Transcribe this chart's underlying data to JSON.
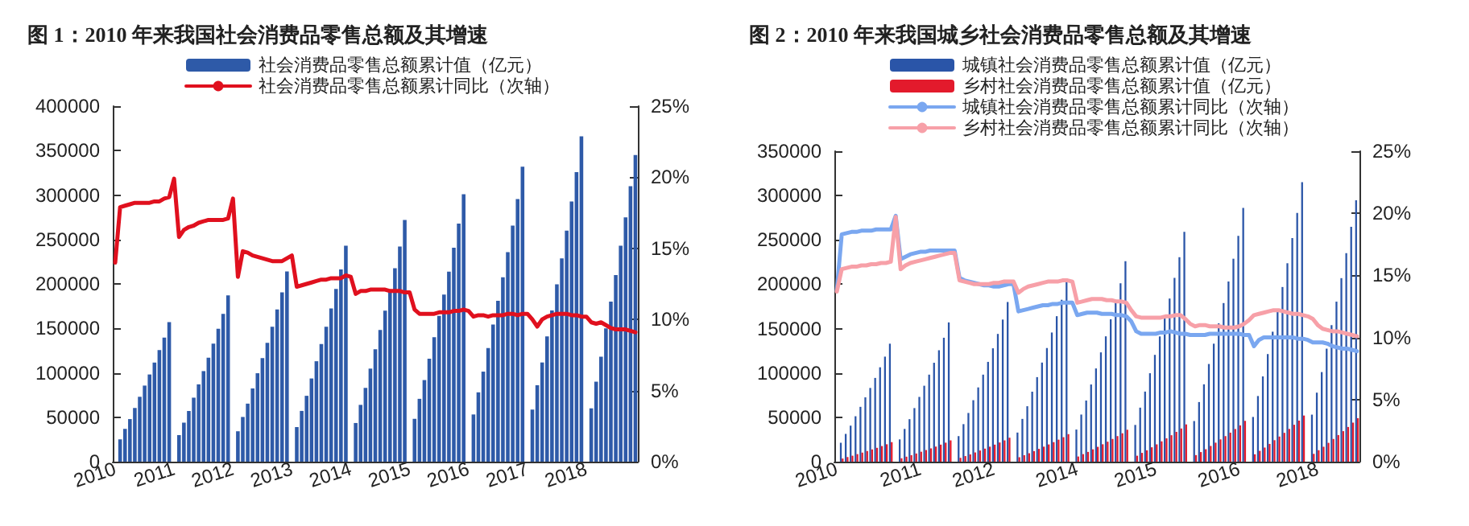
{
  "chart_data": [
    {
      "type": "bar",
      "title": "图 1：2010 年来我国社会消费品零售总额及其增速",
      "categories": [
        "2010",
        null,
        null,
        null,
        null,
        null,
        null,
        null,
        null,
        null,
        null,
        null,
        "2011",
        null,
        null,
        null,
        null,
        null,
        null,
        null,
        null,
        null,
        null,
        null,
        "2012",
        null,
        null,
        null,
        null,
        null,
        null,
        null,
        null,
        null,
        null,
        null,
        "2013",
        null,
        null,
        null,
        null,
        null,
        null,
        null,
        null,
        null,
        null,
        null,
        "2014",
        null,
        null,
        null,
        null,
        null,
        null,
        null,
        null,
        null,
        null,
        null,
        "2015",
        null,
        null,
        null,
        null,
        null,
        null,
        null,
        null,
        null,
        null,
        null,
        "2016",
        null,
        null,
        null,
        null,
        null,
        null,
        null,
        null,
        null,
        null,
        null,
        "2017",
        null,
        null,
        null,
        null,
        null,
        null,
        null,
        null,
        null,
        null,
        null,
        "2018",
        null,
        null,
        null,
        null,
        null,
        null,
        null,
        null,
        null,
        null
      ],
      "series": [
        {
          "name": "社会消费品零售总额累计值（亿元）",
          "color": "#2e5aa8",
          "values": [
            null,
            25100,
            36900,
            47900,
            60400,
            73000,
            85600,
            98100,
            111500,
            125600,
            139700,
            157000,
            null,
            29900,
            43900,
            57000,
            72000,
            87000,
            101900,
            116900,
            132800,
            149600,
            166400,
            187000,
            null,
            34200,
            50300,
            65300,
            82400,
            99500,
            116600,
            133800,
            151900,
            171200,
            190500,
            214000,
            null,
            38900,
            57100,
            74100,
            93600,
            113000,
            132400,
            151900,
            172500,
            194400,
            216300,
            243000,
            null,
            43500,
            63900,
            83000,
            104700,
            126500,
            148200,
            170000,
            193100,
            217600,
            242100,
            272000,
            null,
            48200,
            70700,
            91800,
            115900,
            140000,
            164000,
            188100,
            213700,
            240800,
            267900,
            301000,
            null,
            53100,
            78000,
            101300,
            127800,
            154400,
            180900,
            207500,
            235700,
            265600,
            295500,
            332000,
            null,
            58600,
            86000,
            111600,
            140900,
            170200,
            199500,
            228800,
            259900,
            292800,
            325700,
            366000,
            null,
            60000,
            90000,
            118000,
            150000,
            180000,
            210000,
            243000,
            275000,
            310000,
            345000
          ]
        },
        {
          "type": "line",
          "axis": "y2",
          "name": "社会消费品零售总额累计同比（次轴）",
          "color": "#e0101e",
          "values": [
            14.0,
            17.9,
            18.0,
            18.1,
            18.2,
            18.2,
            18.2,
            18.2,
            18.3,
            18.3,
            18.5,
            18.6,
            19.9,
            15.8,
            16.3,
            16.5,
            16.6,
            16.8,
            16.9,
            17.0,
            17.0,
            17.0,
            17.0,
            17.1,
            18.5,
            13.0,
            14.8,
            14.7,
            14.5,
            14.4,
            14.3,
            14.2,
            14.1,
            14.1,
            14.1,
            14.3,
            14.5,
            12.3,
            12.4,
            12.5,
            12.6,
            12.7,
            12.8,
            12.8,
            12.9,
            12.9,
            12.9,
            13.1,
            13.0,
            11.8,
            12.0,
            12.0,
            12.1,
            12.1,
            12.1,
            12.1,
            12.0,
            12.0,
            12.0,
            11.9,
            11.9,
            10.7,
            10.4,
            10.4,
            10.4,
            10.4,
            10.5,
            10.5,
            10.5,
            10.6,
            10.6,
            10.7,
            10.6,
            10.2,
            10.3,
            10.3,
            10.2,
            10.3,
            10.3,
            10.3,
            10.4,
            10.4,
            10.3,
            10.4,
            10.4,
            10.0,
            9.5,
            10.0,
            10.2,
            10.3,
            10.4,
            10.4,
            10.4,
            10.3,
            10.3,
            10.2,
            10.2,
            9.8,
            9.7,
            9.8,
            9.6,
            9.4,
            9.3,
            9.3,
            9.3,
            9.2,
            9.1
          ]
        }
      ],
      "ylim": [
        0,
        400000
      ],
      "yticks": [
        0,
        50000,
        100000,
        150000,
        200000,
        250000,
        300000,
        350000,
        400000
      ],
      "y2lim": [
        0,
        25
      ],
      "y2ticks": [
        {
          "value": 0,
          "label": "0%"
        },
        {
          "value": 5,
          "label": "5%"
        },
        {
          "value": 10,
          "label": "10%"
        },
        {
          "value": 15,
          "label": "15%"
        },
        {
          "value": 20,
          "label": "20%"
        },
        {
          "value": 25,
          "label": "25%"
        }
      ],
      "legend": "top",
      "marker": "none"
    },
    {
      "type": "bar",
      "title": "图 2：2010 年来我国城乡社会消费品零售总额及其增速",
      "categories": [
        "2010",
        null,
        null,
        null,
        null,
        null,
        null,
        null,
        null,
        null,
        null,
        null,
        null,
        null,
        null,
        null,
        null,
        "2011",
        null,
        null,
        null,
        null,
        null,
        null,
        null,
        null,
        null,
        null,
        null,
        null,
        null,
        null,
        "2012",
        null,
        null,
        null,
        null,
        null,
        null,
        null,
        null,
        null,
        null,
        null,
        null,
        null,
        null,
        null,
        null,
        "2014",
        null,
        null,
        null,
        null,
        null,
        null,
        null,
        null,
        null,
        null,
        null,
        null,
        null,
        null,
        null,
        "2015",
        null,
        null,
        null,
        null,
        null,
        null,
        null,
        null,
        null,
        null,
        null,
        null,
        null,
        null,
        null,
        null,
        "2016",
        null,
        null,
        null,
        null,
        null,
        null,
        null,
        null,
        null,
        null,
        null,
        null,
        null,
        null,
        null,
        "2018",
        null,
        null,
        null,
        null,
        null,
        null,
        null,
        null
      ],
      "series": [
        {
          "name": "城镇社会消费品零售总额累计值（亿元）",
          "color": "#2a55a8",
          "values": [
            null,
            21300,
            31300,
            40600,
            51200,
            61800,
            72500,
            83100,
            94400,
            106400,
            118400,
            133000,
            null,
            25100,
            36900,
            47900,
            60400,
            73000,
            85600,
            98100,
            111500,
            125600,
            139700,
            157000,
            null,
            28800,
            42300,
            54900,
            69300,
            83700,
            98100,
            112500,
            127800,
            144000,
            160200,
            180000,
            null,
            32800,
            48200,
            62500,
            78900,
            95300,
            111700,
            128100,
            145600,
            164000,
            182500,
            205000,
            null,
            36200,
            53100,
            68900,
            87000,
            105100,
            123200,
            141300,
            160500,
            180800,
            201100,
            226000,
            null,
            41400,
            60900,
            79000,
            99700,
            120400,
            141200,
            161900,
            183900,
            207200,
            230500,
            259000,
            null,
            45800,
            67200,
            87200,
            110100,
            133000,
            155900,
            178800,
            203100,
            228800,
            254500,
            286000,
            null,
            50400,
            74000,
            96100,
            121300,
            146500,
            171700,
            196900,
            223700,
            252000,
            280400,
            315000,
            null,
            53000,
            77800,
            101000,
            127400,
            153900,
            180400,
            206900,
            235000,
            264800,
            294600
          ]
        },
        {
          "name": "乡村社会消费品零售总额累计值（亿元）",
          "color": "#e31a2c",
          "values": [
            null,
            3500,
            5200,
            6700,
            8500,
            10200,
            12000,
            13800,
            15600,
            17600,
            19600,
            22000,
            null,
            3800,
            5600,
            7300,
            9200,
            11200,
            13100,
            15000,
            17000,
            19200,
            21400,
            24000,
            null,
            4300,
            6300,
            8200,
            10400,
            12600,
            14700,
            16900,
            19200,
            21600,
            24000,
            27000,
            null,
            5000,
            7300,
            9500,
            11900,
            14400,
            16900,
            19400,
            22000,
            24800,
            27600,
            31000,
            null,
            5800,
            8500,
            11000,
            13900,
            16700,
            19600,
            22500,
            25600,
            28800,
            32000,
            36000,
            null,
            6700,
            9900,
            12800,
            16200,
            19500,
            22900,
            26300,
            29800,
            33600,
            37400,
            42000,
            null,
            7400,
            10800,
            14000,
            17700,
            21400,
            25100,
            28800,
            32700,
            36800,
            40900,
            46000,
            null,
            8300,
            12200,
            15900,
            20000,
            24200,
            28300,
            32500,
            36900,
            41600,
            46300,
            52000,
            null,
            8800,
            12900,
            16800,
            21200,
            25600,
            30000,
            34400,
            39100,
            44000,
            49000
          ]
        },
        {
          "type": "line",
          "axis": "y2",
          "name": "城镇社会消费品零售总额累计同比（次轴）",
          "color": "#7aa7f0",
          "values": [
            13.8,
            18.3,
            18.4,
            18.5,
            18.5,
            18.6,
            18.6,
            18.6,
            18.7,
            18.7,
            18.7,
            18.7,
            19.8,
            16.3,
            16.5,
            16.7,
            16.8,
            16.9,
            16.9,
            17.0,
            17.0,
            17.0,
            17.0,
            17.0,
            17.0,
            14.8,
            14.6,
            14.5,
            14.4,
            14.3,
            14.2,
            14.2,
            14.1,
            14.1,
            14.2,
            14.3,
            14.3,
            12.1,
            12.2,
            12.3,
            12.4,
            12.5,
            12.6,
            12.6,
            12.7,
            12.7,
            12.8,
            12.8,
            12.8,
            11.8,
            11.9,
            12.0,
            12.0,
            12.0,
            11.9,
            11.9,
            11.9,
            11.8,
            11.8,
            11.7,
            11.3,
            10.5,
            10.3,
            10.3,
            10.3,
            10.3,
            10.4,
            10.4,
            10.5,
            10.4,
            10.3,
            10.3,
            10.2,
            10.2,
            10.2,
            10.2,
            10.3,
            10.3,
            10.3,
            10.3,
            10.3,
            10.3,
            10.3,
            10.2,
            10.2,
            9.3,
            9.8,
            10.0,
            10.0,
            10.0,
            10.0,
            10.0,
            10.0,
            10.0,
            9.9,
            9.9,
            9.8,
            9.6,
            9.6,
            9.6,
            9.5,
            9.3,
            9.2,
            9.1,
            9.1,
            9.0,
            8.9
          ]
        },
        {
          "type": "line",
          "axis": "y2",
          "name": "乡村社会消费品零售总额累计同比（次轴）",
          "color": "#f7a0a8",
          "values": [
            13.7,
            15.5,
            15.6,
            15.7,
            15.7,
            15.8,
            15.8,
            15.9,
            15.9,
            16.0,
            16.0,
            16.1,
            19.7,
            15.5,
            15.8,
            16.0,
            16.1,
            16.2,
            16.3,
            16.4,
            16.5,
            16.6,
            16.7,
            16.8,
            16.8,
            14.6,
            14.5,
            14.4,
            14.3,
            14.3,
            14.3,
            14.3,
            14.4,
            14.4,
            14.5,
            14.5,
            14.5,
            13.6,
            13.9,
            14.1,
            14.2,
            14.3,
            14.4,
            14.5,
            14.5,
            14.5,
            14.6,
            14.6,
            14.5,
            12.8,
            12.9,
            13.0,
            13.1,
            13.1,
            13.1,
            13.0,
            13.0,
            12.9,
            12.9,
            12.8,
            12.2,
            11.7,
            11.6,
            11.6,
            11.6,
            11.6,
            11.6,
            11.7,
            11.7,
            11.8,
            11.8,
            11.5,
            11.1,
            10.9,
            11.0,
            11.0,
            10.9,
            10.9,
            10.9,
            10.8,
            10.8,
            10.8,
            10.9,
            11.1,
            11.4,
            11.8,
            11.9,
            12.0,
            12.1,
            12.2,
            12.2,
            12.1,
            12.0,
            11.9,
            11.9,
            11.8,
            11.7,
            11.5,
            11.0,
            10.7,
            10.6,
            10.5,
            10.5,
            10.4,
            10.3,
            10.2,
            10.1
          ]
        }
      ],
      "ylim": [
        0,
        350000
      ],
      "yticks": [
        0,
        50000,
        100000,
        150000,
        200000,
        250000,
        300000,
        350000
      ],
      "y2lim": [
        0,
        25
      ],
      "y2ticks": [
        {
          "value": 0,
          "label": "0%"
        },
        {
          "value": 5,
          "label": "5%"
        },
        {
          "value": 10,
          "label": "10%"
        },
        {
          "value": 15,
          "label": "15%"
        },
        {
          "value": 20,
          "label": "20%"
        },
        {
          "value": 25,
          "label": "25%"
        }
      ],
      "legend": "top",
      "marker": "none"
    }
  ]
}
